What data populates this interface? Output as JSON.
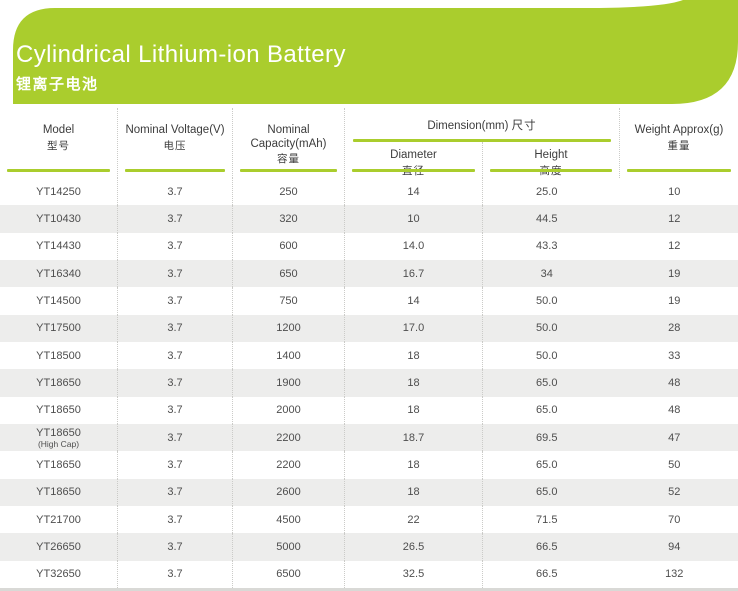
{
  "banner": {
    "title": "Cylindrical Lithium-ion Battery",
    "subtitle": "锂离子电池"
  },
  "table": {
    "headers": {
      "model": {
        "en": "Model",
        "zh": "型号"
      },
      "voltage": {
        "en": "Nominal Voltage(V)",
        "zh": "电压"
      },
      "capacity": {
        "en": "Nominal Capacity(mAh)",
        "zh": "容量"
      },
      "dimension_group": {
        "en": "Dimension(mm)",
        "zh": "尺寸"
      },
      "diameter": {
        "en": "Diameter",
        "zh": "直径"
      },
      "height": {
        "en": "Height",
        "zh": "高度"
      },
      "weight": {
        "en": "Weight Approx(g)",
        "zh": "重量"
      }
    },
    "rows": [
      {
        "model": "YT14250",
        "note": "",
        "voltage": "3.7",
        "capacity": "250",
        "diameter": "14",
        "height": "25.0",
        "weight": "10"
      },
      {
        "model": "YT10430",
        "note": "",
        "voltage": "3.7",
        "capacity": "320",
        "diameter": "10",
        "height": "44.5",
        "weight": "12"
      },
      {
        "model": "YT14430",
        "note": "",
        "voltage": "3.7",
        "capacity": "600",
        "diameter": "14.0",
        "height": "43.3",
        "weight": "12"
      },
      {
        "model": "YT16340",
        "note": "",
        "voltage": "3.7",
        "capacity": "650",
        "diameter": "16.7",
        "height": "34",
        "weight": "19"
      },
      {
        "model": "YT14500",
        "note": "",
        "voltage": "3.7",
        "capacity": "750",
        "diameter": "14",
        "height": "50.0",
        "weight": "19"
      },
      {
        "model": "YT17500",
        "note": "",
        "voltage": "3.7",
        "capacity": "1200",
        "diameter": "17.0",
        "height": "50.0",
        "weight": "28"
      },
      {
        "model": "YT18500",
        "note": "",
        "voltage": "3.7",
        "capacity": "1400",
        "diameter": "18",
        "height": "50.0",
        "weight": "33"
      },
      {
        "model": "YT18650",
        "note": "",
        "voltage": "3.7",
        "capacity": "1900",
        "diameter": "18",
        "height": "65.0",
        "weight": "48"
      },
      {
        "model": "YT18650",
        "note": "",
        "voltage": "3.7",
        "capacity": "2000",
        "diameter": "18",
        "height": "65.0",
        "weight": "48"
      },
      {
        "model": "YT18650",
        "note": "(High Cap)",
        "voltage": "3.7",
        "capacity": "2200",
        "diameter": "18.7",
        "height": "69.5",
        "weight": "47"
      },
      {
        "model": "YT18650",
        "note": "",
        "voltage": "3.7",
        "capacity": "2200",
        "diameter": "18",
        "height": "65.0",
        "weight": "50"
      },
      {
        "model": "YT18650",
        "note": "",
        "voltage": "3.7",
        "capacity": "2600",
        "diameter": "18",
        "height": "65.0",
        "weight": "52"
      },
      {
        "model": "YT21700",
        "note": "",
        "voltage": "3.7",
        "capacity": "4500",
        "diameter": "22",
        "height": "71.5",
        "weight": "70"
      },
      {
        "model": "YT26650",
        "note": "",
        "voltage": "3.7",
        "capacity": "5000",
        "diameter": "26.5",
        "height": "66.5",
        "weight": "94"
      },
      {
        "model": "YT32650",
        "note": "",
        "voltage": "3.7",
        "capacity": "6500",
        "diameter": "32.5",
        "height": "66.5",
        "weight": "132"
      }
    ]
  },
  "colors": {
    "brand_green": "#AACD2D",
    "row_stripe": "#EDEDEC",
    "dot_line": "#CBCBC8",
    "bottom_bar": "#D9D9D6"
  }
}
